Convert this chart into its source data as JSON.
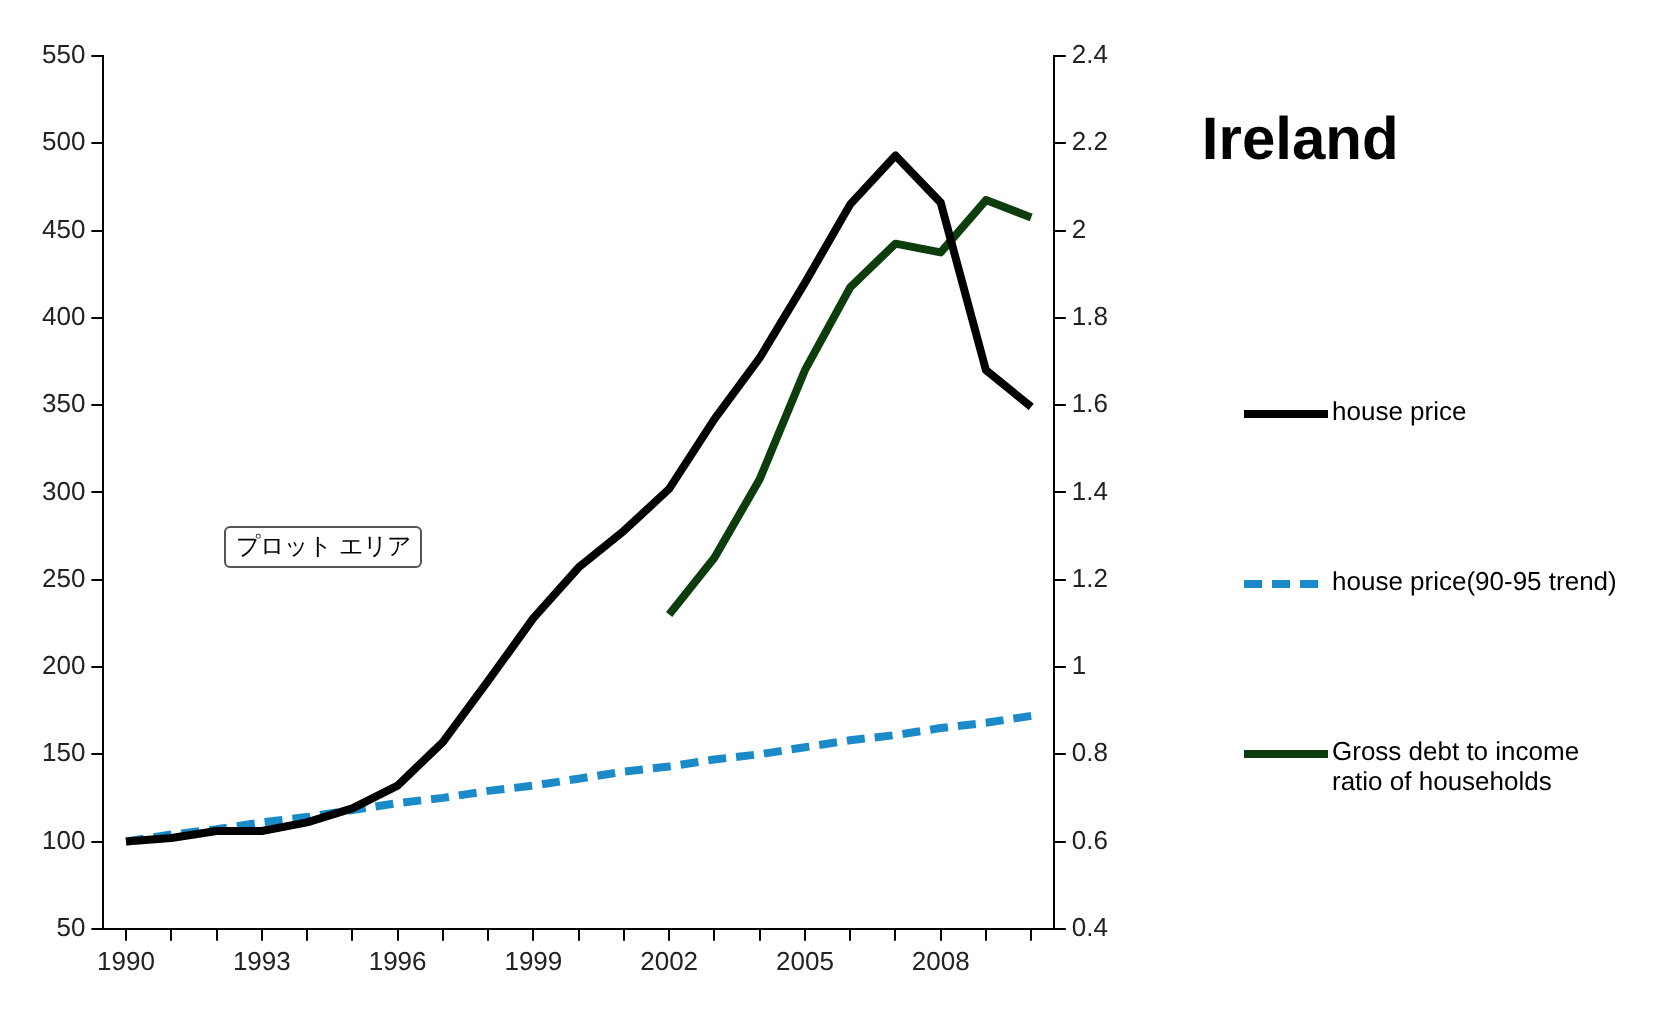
{
  "chart_data": {
    "type": "line",
    "title": "Ireland",
    "categories": [
      "1990",
      null,
      null,
      "1993",
      null,
      null,
      "1996",
      null,
      null,
      "1999",
      null,
      null,
      "2002",
      null,
      null,
      "2005",
      null,
      null,
      "2008",
      null,
      null
    ],
    "series": [
      {
        "name": "house price",
        "color": "#000000",
        "line_style": "solid",
        "values": [
          100,
          102,
          106,
          106,
          111,
          119,
          132,
          157,
          192,
          228,
          257,
          278,
          302,
          342,
          377,
          420,
          465,
          493,
          466,
          370,
          349
        ]
      },
      {
        "name": "house price(90-95 trend)",
        "color": "#1a8ac8",
        "line_style": "dashed",
        "values": [
          100,
          104,
          107,
          111,
          114,
          118,
          122,
          125,
          129,
          132,
          136,
          140,
          143,
          147,
          150,
          154,
          158,
          161,
          165,
          168,
          172
        ]
      },
      {
        "name": "Gross debt to income ratio of households",
        "color": "#0d3d0d",
        "line_style": "solid",
        "axis": "y2",
        "values": [
          null,
          null,
          null,
          null,
          null,
          null,
          null,
          null,
          null,
          null,
          null,
          null,
          1.12,
          1.25,
          1.43,
          1.68,
          1.87,
          1.97,
          1.95,
          2.07,
          2.03
        ]
      }
    ],
    "ylim": [
      50,
      550
    ],
    "yticks": [
      50,
      100,
      150,
      200,
      250,
      300,
      350,
      400,
      450,
      500,
      550
    ],
    "y2lim": [
      0.4,
      2.4
    ],
    "y2ticks": [
      0.4,
      0.6,
      0.8,
      1,
      1.2,
      1.4,
      1.6,
      1.8,
      2,
      2.2,
      2.4
    ],
    "grid": false,
    "legend": "right",
    "marker": "none",
    "annotations": [
      "プロット エリア"
    ]
  }
}
